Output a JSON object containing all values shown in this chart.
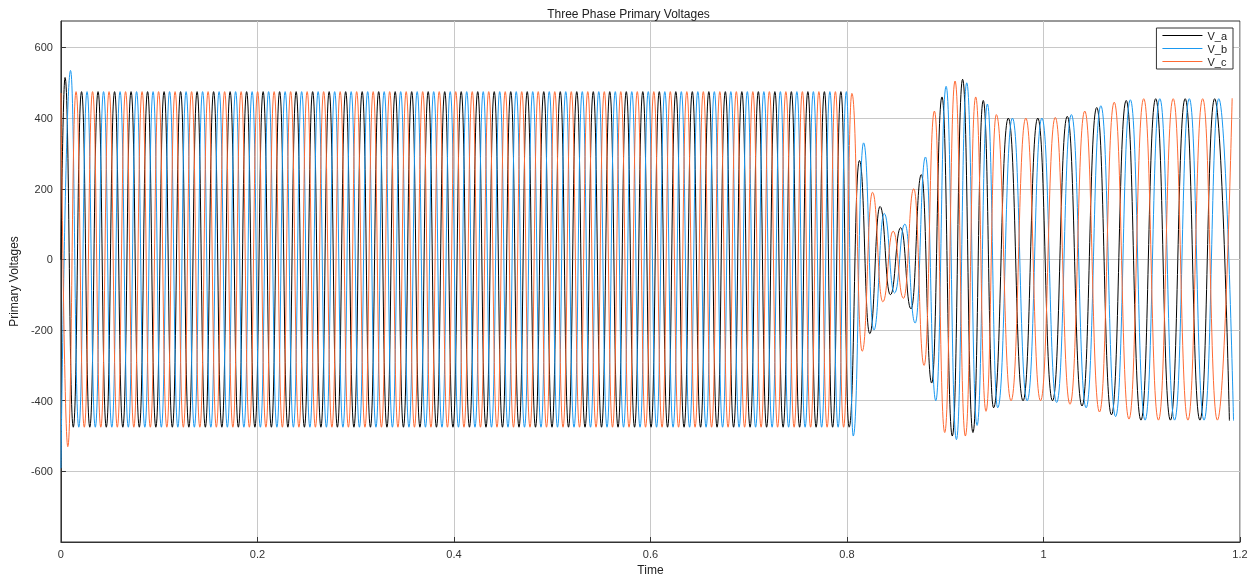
{
  "chart_data": {
    "type": "line",
    "title": "Three Phase Primary Voltages",
    "xlabel": "Time",
    "ylabel": "Primary Voltages",
    "xlim": [
      0,
      1.2
    ],
    "xticks": [
      0,
      0.2,
      0.4,
      0.6,
      0.8,
      1,
      1.2
    ],
    "ylim": [
      -800,
      675
    ],
    "yticks": [
      -600,
      -400,
      -200,
      0,
      200,
      400,
      600
    ],
    "grid": true,
    "legend": "top right",
    "marker": "none",
    "line_style": "solid",
    "series": [
      {
        "name": "V_a",
        "color": "#000000",
        "x": [
          0,
          0.0042,
          0.0126,
          0.021,
          0.0294,
          0.0378,
          0.0462,
          0.0546,
          0.063,
          0.0714,
          0.0798,
          0.0882,
          0.0966,
          0.105,
          0.1134,
          0.1218,
          0.1302,
          0.1386,
          0.147,
          0.1554,
          0.1638,
          0.1722,
          0.1806,
          0.189,
          0.1974,
          0.2058,
          0.2142,
          0.2226,
          0.231,
          0.2394,
          0.2478,
          0.2562,
          0.2646,
          0.273,
          0.2814,
          0.2898,
          0.2982,
          0.3066,
          0.315,
          0.3234,
          0.3318,
          0.3402,
          0.3486,
          0.357,
          0.3654,
          0.3738,
          0.3822,
          0.3906,
          0.399,
          0.4074,
          0.4158,
          0.4242,
          0.4326,
          0.441,
          0.4494,
          0.4578,
          0.4662,
          0.4746,
          0.483,
          0.4914,
          0.4998,
          0.5082,
          0.5166,
          0.525,
          0.5334,
          0.5418,
          0.5502,
          0.5586,
          0.567,
          0.5754,
          0.5838,
          0.5922,
          0.6006,
          0.609,
          0.6174,
          0.6258,
          0.6342,
          0.6426,
          0.651,
          0.6594,
          0.6678,
          0.6762,
          0.6846,
          0.693,
          0.7014,
          0.7098,
          0.7182,
          0.7266,
          0.735,
          0.7434,
          0.7518,
          0.7602,
          0.7686,
          0.777,
          0.7854,
          0.7938,
          0.8022,
          0.8127,
          0.8232,
          0.8337,
          0.8442,
          0.8547,
          0.8652,
          0.8757,
          0.8862,
          0.8967,
          0.9072,
          0.9177,
          0.9282,
          0.9387,
          0.9492,
          0.9642,
          0.9792,
          0.9942,
          1.0092,
          1.0242,
          1.0392,
          1.0542,
          1.0692,
          1.0842,
          1.0992,
          1.1142,
          1.1292,
          1.1442,
          1.1592,
          1.1742,
          1.1892
        ],
        "values": [
          0,
          515,
          -475,
          475,
          -475,
          475,
          -475,
          475,
          -475,
          475,
          -475,
          475,
          -475,
          475,
          -475,
          475,
          -475,
          475,
          -475,
          475,
          -475,
          475,
          -475,
          475,
          -475,
          475,
          -475,
          475,
          -475,
          475,
          -475,
          475,
          -475,
          475,
          -475,
          475,
          -475,
          475,
          -475,
          475,
          -475,
          475,
          -475,
          475,
          -475,
          475,
          -475,
          475,
          -475,
          475,
          -475,
          475,
          -475,
          475,
          -475,
          475,
          -475,
          475,
          -475,
          475,
          -475,
          475,
          -475,
          475,
          -475,
          475,
          -475,
          475,
          -475,
          475,
          -475,
          475,
          -475,
          475,
          -475,
          475,
          -475,
          475,
          -475,
          475,
          -475,
          475,
          -475,
          475,
          -475,
          475,
          -475,
          475,
          -475,
          475,
          -475,
          475,
          -475,
          475,
          -475,
          475,
          -475,
          280,
          -210,
          150,
          -100,
          90,
          -140,
          240,
          -350,
          460,
          -500,
          510,
          -490,
          450,
          -420,
          400,
          -400,
          400,
          -400,
          405,
          -415,
          430,
          -440,
          450,
          -455,
          455,
          -455,
          455,
          -455,
          455,
          -455
        ]
      },
      {
        "name": "V_b",
        "color": "#1a98f0",
        "x": [
          0,
          0.0098,
          0.0182,
          0.0266,
          0.035,
          0.0434,
          0.0518,
          0.0602,
          0.0686,
          0.077,
          0.0854,
          0.0938,
          0.1022,
          0.1106,
          0.119,
          0.1274,
          0.1358,
          0.1442,
          0.1526,
          0.161,
          0.1694,
          0.1778,
          0.1862,
          0.1946,
          0.203,
          0.2114,
          0.2198,
          0.2282,
          0.2366,
          0.245,
          0.2534,
          0.2618,
          0.2702,
          0.2786,
          0.287,
          0.2954,
          0.3038,
          0.3122,
          0.3206,
          0.329,
          0.3374,
          0.3458,
          0.3542,
          0.3626,
          0.371,
          0.3794,
          0.3878,
          0.3962,
          0.4046,
          0.413,
          0.4214,
          0.4298,
          0.4382,
          0.4466,
          0.455,
          0.4634,
          0.4718,
          0.4802,
          0.4886,
          0.497,
          0.5054,
          0.5138,
          0.5222,
          0.5306,
          0.539,
          0.5474,
          0.5558,
          0.5642,
          0.5726,
          0.581,
          0.5894,
          0.5978,
          0.6062,
          0.6146,
          0.623,
          0.6314,
          0.6398,
          0.6482,
          0.6566,
          0.665,
          0.6734,
          0.6818,
          0.6902,
          0.6986,
          0.707,
          0.7154,
          0.7238,
          0.7322,
          0.7406,
          0.749,
          0.7574,
          0.7658,
          0.7742,
          0.7826,
          0.791,
          0.7994,
          0.8064,
          0.8169,
          0.8274,
          0.8379,
          0.8484,
          0.8589,
          0.8694,
          0.8799,
          0.8904,
          0.9009,
          0.9114,
          0.9219,
          0.9324,
          0.9429,
          0.9534,
          0.9684,
          0.9834,
          0.9984,
          1.0134,
          1.0284,
          1.0434,
          1.0584,
          1.0734,
          1.0884,
          1.1034,
          1.1184,
          1.1334,
          1.1484,
          1.1634,
          1.1784,
          1.1934
        ],
        "values": [
          -590,
          535,
          -475,
          475,
          -475,
          475,
          -475,
          475,
          -475,
          475,
          -475,
          475,
          -475,
          475,
          -475,
          475,
          -475,
          475,
          -475,
          475,
          -475,
          475,
          -475,
          475,
          -475,
          475,
          -475,
          475,
          -475,
          475,
          -475,
          475,
          -475,
          475,
          -475,
          475,
          -475,
          475,
          -475,
          475,
          -475,
          475,
          -475,
          475,
          -475,
          475,
          -475,
          475,
          -475,
          475,
          -475,
          475,
          -475,
          475,
          -475,
          475,
          -475,
          475,
          -475,
          475,
          -475,
          475,
          -475,
          475,
          -475,
          475,
          -475,
          475,
          -475,
          475,
          -475,
          475,
          -475,
          475,
          -475,
          475,
          -475,
          475,
          -475,
          475,
          -475,
          475,
          -475,
          475,
          -475,
          475,
          -475,
          475,
          -475,
          475,
          -475,
          475,
          -475,
          475,
          -475,
          475,
          -500,
          330,
          -200,
          130,
          -95,
          100,
          -180,
          290,
          -400,
          490,
          -510,
          500,
          -470,
          440,
          -420,
          400,
          -400,
          400,
          -405,
          410,
          -420,
          435,
          -445,
          452,
          -455,
          455,
          -455,
          455,
          -455,
          455,
          -455
        ]
      },
      {
        "name": "V_c",
        "color": "#ff6a33",
        "x": [
          0,
          0.007,
          0.0154,
          0.0238,
          0.0322,
          0.0406,
          0.049,
          0.0574,
          0.0658,
          0.0742,
          0.0826,
          0.091,
          0.0994,
          0.1078,
          0.1162,
          0.1246,
          0.133,
          0.1414,
          0.1498,
          0.1582,
          0.1666,
          0.175,
          0.1834,
          0.1918,
          0.2002,
          0.2086,
          0.217,
          0.2254,
          0.2338,
          0.2422,
          0.2506,
          0.259,
          0.2674,
          0.2758,
          0.2842,
          0.2926,
          0.301,
          0.3094,
          0.3178,
          0.3262,
          0.3346,
          0.343,
          0.3514,
          0.3598,
          0.3682,
          0.3766,
          0.385,
          0.3934,
          0.4018,
          0.4102,
          0.4186,
          0.427,
          0.4354,
          0.4438,
          0.4522,
          0.4606,
          0.469,
          0.4774,
          0.4858,
          0.4942,
          0.5026,
          0.511,
          0.5194,
          0.5278,
          0.5362,
          0.5446,
          0.553,
          0.5614,
          0.5698,
          0.5782,
          0.5866,
          0.595,
          0.6034,
          0.6118,
          0.6202,
          0.6286,
          0.637,
          0.6454,
          0.6538,
          0.6622,
          0.6706,
          0.679,
          0.6874,
          0.6958,
          0.7042,
          0.7126,
          0.721,
          0.7294,
          0.7378,
          0.7462,
          0.7546,
          0.763,
          0.7714,
          0.7798,
          0.7882,
          0.7966,
          0.805,
          0.8155,
          0.826,
          0.8365,
          0.847,
          0.8575,
          0.868,
          0.8785,
          0.889,
          0.8995,
          0.91,
          0.9205,
          0.931,
          0.9415,
          0.952,
          0.967,
          0.982,
          0.997,
          1.012,
          1.027,
          1.042,
          1.057,
          1.072,
          1.087,
          1.102,
          1.117,
          1.132,
          1.147,
          1.162,
          1.177,
          1.192
        ],
        "values": [
          470,
          -530,
          475,
          -475,
          475,
          -475,
          475,
          -475,
          475,
          -475,
          475,
          -475,
          475,
          -475,
          475,
          -475,
          475,
          -475,
          475,
          -475,
          475,
          -475,
          475,
          -475,
          475,
          -475,
          475,
          -475,
          475,
          -475,
          475,
          -475,
          475,
          -475,
          475,
          -475,
          475,
          -475,
          475,
          -475,
          475,
          -475,
          475,
          -475,
          475,
          -475,
          475,
          -475,
          475,
          -475,
          475,
          -475,
          475,
          -475,
          475,
          -475,
          475,
          -475,
          475,
          -475,
          475,
          -475,
          475,
          -475,
          475,
          -475,
          475,
          -475,
          475,
          -475,
          475,
          -475,
          475,
          -475,
          475,
          -475,
          475,
          -475,
          475,
          -475,
          475,
          -475,
          475,
          -475,
          475,
          -475,
          475,
          -475,
          475,
          -475,
          475,
          -475,
          475,
          -475,
          475,
          -475,
          470,
          -260,
          190,
          -120,
          80,
          -110,
          200,
          -300,
          420,
          -490,
          505,
          -500,
          460,
          -430,
          410,
          -400,
          400,
          -400,
          402,
          -410,
          420,
          -432,
          445,
          -452,
          455,
          -455,
          455,
          -455,
          455,
          -455,
          455
        ]
      }
    ]
  }
}
